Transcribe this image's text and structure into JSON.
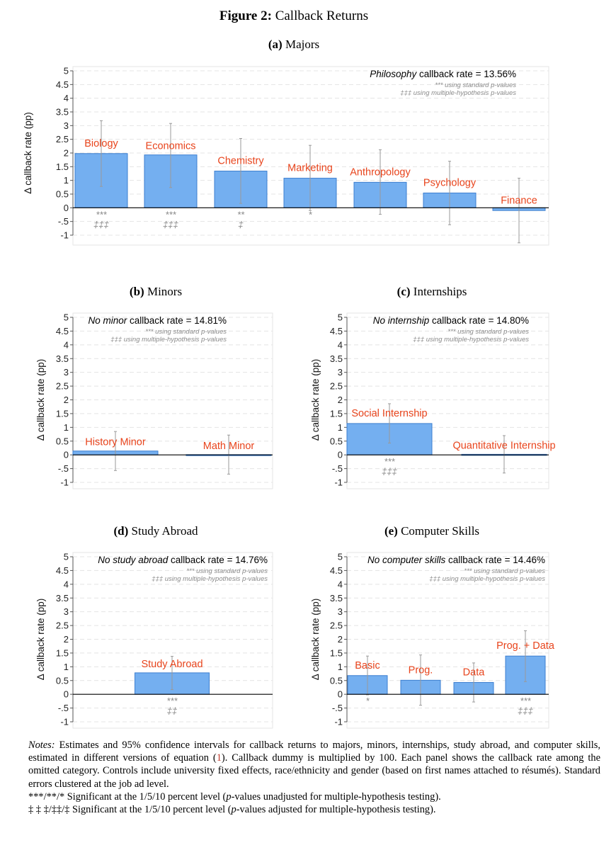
{
  "figure": {
    "label": "Figure 2:",
    "title": "Callback Returns"
  },
  "panels": [
    {
      "letter": "(a)",
      "name": "Majors"
    },
    {
      "letter": "(b)",
      "name": "Minors"
    },
    {
      "letter": "(c)",
      "name": "Internships"
    },
    {
      "letter": "(d)",
      "name": "Study Abroad"
    },
    {
      "letter": "(e)",
      "name": "Computer Skills"
    }
  ],
  "chart_data": [
    {
      "type": "bar",
      "id": "majors",
      "title": "(a) Majors",
      "xlabel": "",
      "ylabel": "Δ callback rate (pp)",
      "ylim": [
        -1,
        5
      ],
      "ticks": [
        "5",
        "4.5",
        "4",
        "3.5",
        "3",
        "2.5",
        "2",
        "1.5",
        "1",
        "0.5",
        "0",
        "-.5",
        "-1"
      ],
      "baseline": {
        "italic": "Philosophy",
        "rest": " callback rate = 13.56%"
      },
      "note1": "*** using standard p-values",
      "note2": "‡‡‡ using multiple-hypothesis p-values",
      "bar_color": "#74aff0",
      "label_color": "#e8441c",
      "categories": [
        "Biology",
        "Economics",
        "Chemistry",
        "Marketing",
        "Anthropology",
        "Psychology",
        "Finance"
      ],
      "values": [
        1.98,
        1.93,
        1.34,
        1.08,
        0.93,
        0.54,
        -0.1
      ],
      "ci_low": [
        0.78,
        0.74,
        0.16,
        -0.1,
        -0.24,
        -0.62,
        -1.28
      ],
      "ci_high": [
        3.18,
        3.08,
        2.53,
        2.28,
        2.12,
        1.7,
        1.08
      ],
      "stars": [
        "***",
        "***",
        "**",
        "*",
        "",
        "",
        ""
      ],
      "daggers": [
        "‡‡‡",
        "‡‡‡",
        "‡",
        "",
        "",
        "",
        ""
      ]
    },
    {
      "type": "bar",
      "id": "minors",
      "title": "(b) Minors",
      "xlabel": "",
      "ylabel": "Δ callback rate (pp)",
      "ylim": [
        -1,
        5
      ],
      "ticks": [
        "5",
        "4.5",
        "4",
        "3.5",
        "3",
        "2.5",
        "2",
        "1.5",
        "1",
        "0.5",
        "0",
        "-.5",
        "-1"
      ],
      "baseline": {
        "italic": "No minor",
        "rest": " callback rate = 14.81%"
      },
      "note1": "*** using standard p-values",
      "note2": "‡‡‡ using multiple-hypothesis p-values",
      "bar_color": "#74aff0",
      "label_color": "#e8441c",
      "categories": [
        "History Minor",
        "Math Minor"
      ],
      "values": [
        0.14,
        0.01
      ],
      "ci_low": [
        -0.57,
        -0.7
      ],
      "ci_high": [
        0.85,
        0.72
      ],
      "stars": [
        "",
        ""
      ],
      "daggers": [
        "",
        ""
      ]
    },
    {
      "type": "bar",
      "id": "internships",
      "title": "(c) Internships",
      "xlabel": "",
      "ylabel": "Δ callback rate (pp)",
      "ylim": [
        -1,
        5
      ],
      "ticks": [
        "5",
        "4.5",
        "4",
        "3.5",
        "3",
        "2.5",
        "2",
        "1.5",
        "1",
        "0.5",
        "0",
        "-.5",
        "-1"
      ],
      "baseline": {
        "italic": "No internship",
        "rest": " callback rate = 14.80%"
      },
      "note1": "*** using standard p-values",
      "note2": "‡‡‡ using multiple-hypothesis p-values",
      "bar_color": "#74aff0",
      "label_color": "#e8441c",
      "categories": [
        "Social Internship",
        "Quantitative Internship"
      ],
      "values": [
        1.14,
        0.02
      ],
      "ci_low": [
        0.43,
        -0.66
      ],
      "ci_high": [
        1.86,
        0.7
      ],
      "stars": [
        "***",
        ""
      ],
      "daggers": [
        "‡‡‡",
        ""
      ]
    },
    {
      "type": "bar",
      "id": "study-abroad",
      "title": "(d) Study Abroad",
      "xlabel": "",
      "ylabel": "Δ callback rate (pp)",
      "ylim": [
        -1,
        5
      ],
      "ticks": [
        "5",
        "4.5",
        "4",
        "3.5",
        "3",
        "2.5",
        "2",
        "1.5",
        "1",
        "0.5",
        "0",
        "-.5",
        "-1"
      ],
      "baseline": {
        "italic": "No study abroad",
        "rest": " callback rate = 14.76%"
      },
      "note1": "*** using standard p-values",
      "note2": "‡‡‡ using multiple-hypothesis p-values",
      "bar_color": "#74aff0",
      "label_color": "#e8441c",
      "categories": [
        "Study Abroad"
      ],
      "values": [
        0.78
      ],
      "ci_low": [
        0.17
      ],
      "ci_high": [
        1.38
      ],
      "stars": [
        "***"
      ],
      "daggers": [
        "‡‡"
      ]
    },
    {
      "type": "bar",
      "id": "computer-skills",
      "title": "(e) Computer Skills",
      "xlabel": "",
      "ylabel": "Δ callback rate (pp)",
      "ylim": [
        -1,
        5
      ],
      "ticks": [
        "5",
        "4.5",
        "4",
        "3.5",
        "3",
        "2.5",
        "2",
        "1.5",
        "1",
        "0.5",
        "0",
        "-.5",
        "-1"
      ],
      "baseline": {
        "italic": "No computer skills",
        "rest": " callback rate = 14.46%"
      },
      "note1": "*** using standard p-values",
      "note2": "‡‡‡ using multiple-hypothesis p-values",
      "bar_color": "#74aff0",
      "label_color": "#e8441c",
      "categories": [
        "Basic",
        "Prog.",
        "Data",
        "Prog. + Data"
      ],
      "values": [
        0.68,
        0.51,
        0.43,
        1.39
      ],
      "ci_low": [
        -0.02,
        -0.4,
        -0.28,
        0.46
      ],
      "ci_high": [
        1.39,
        1.43,
        1.14,
        2.31
      ],
      "stars": [
        "*",
        "",
        "",
        "***"
      ],
      "daggers": [
        "",
        "",
        "",
        "‡‡‡"
      ]
    }
  ],
  "notes": {
    "label": "Notes:",
    "text1": " Estimates and 95% confidence intervals for callback returns to majors, minors, internships, study abroad, and computer skills, estimated in different versions of equation (",
    "ref": "1",
    "text2": "). Callback dummy is multiplied by 100. Each panel shows the callback rate among the omitted category. Controls include university fixed effects, race/ethnicity and gender (based on first names attached to résumés). Standard errors clustered at the job ad level.",
    "line2_prefix": "***/**/* Significant at the 1/5/10 percent level (",
    "line2_p": "p",
    "line2_suffix": "-values unadjusted for multiple-hypothesis testing).",
    "line3_prefix": "‡ ‡ ‡/‡‡/‡ Significant at the 1/5/10 percent level (",
    "line3_p": "p",
    "line3_suffix": "-values adjusted for multiple-hypothesis testing)."
  }
}
